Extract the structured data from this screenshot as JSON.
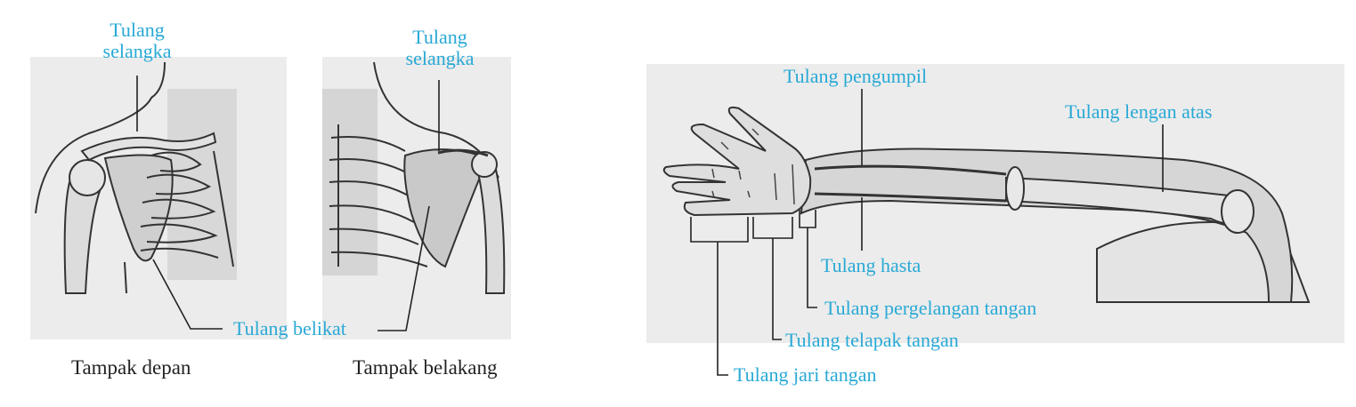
{
  "colors": {
    "label": "#29a9d6",
    "caption": "#222222",
    "panel_bg": "#ececec",
    "bone_fill": "#dcdcdc",
    "outline": "#333333"
  },
  "shoulder": {
    "front_clavicle_label_line1": "Tulang",
    "front_clavicle_label_line2": "selangka",
    "back_clavicle_label_line1": "Tulang",
    "back_clavicle_label_line2": "selangka",
    "scapula_label": "Tulang belikat",
    "front_caption": "Tampak depan",
    "back_caption": "Tampak belakang"
  },
  "arm": {
    "radius_label": "Tulang pengumpil",
    "humerus_label": "Tulang lengan atas",
    "ulna_label": "Tulang hasta",
    "carpal_label": "Tulang pergelangan tangan",
    "metacarpal_label": "Tulang telapak tangan",
    "phalanx_label": "Tulang jari tangan"
  }
}
